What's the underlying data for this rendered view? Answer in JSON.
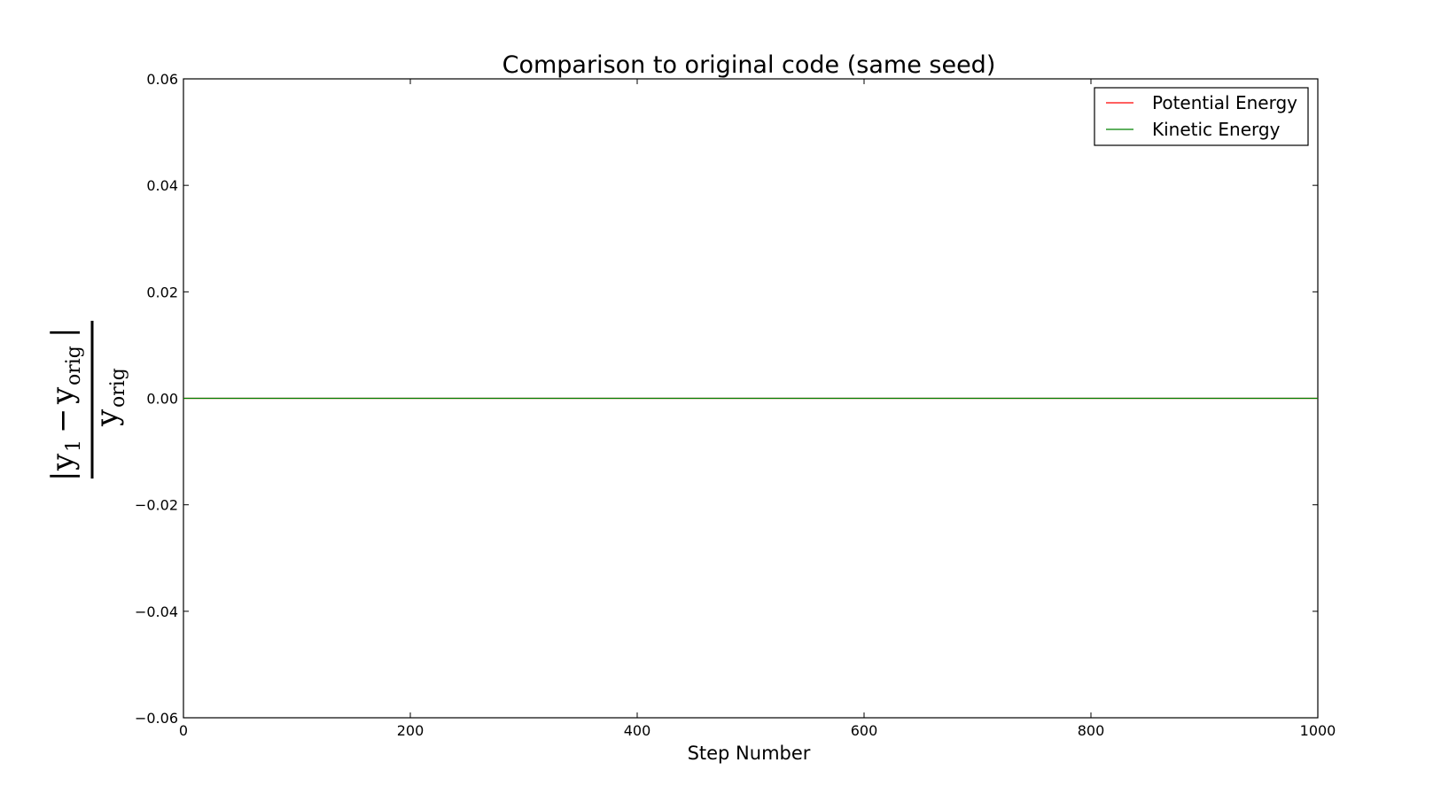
{
  "chart_data": {
    "type": "line",
    "title": "Comparison to original code (same seed)",
    "xlabel": "Step Number",
    "ylabel": {
      "numerator_var": "y",
      "numerator_sub": "1",
      "minus": "−",
      "numerator_ref_var": "y",
      "numerator_ref_sub": "orig",
      "abs_bar": "|",
      "denominator_var": "y",
      "denominator_sub": "orig"
    },
    "xlim": [
      0,
      1000
    ],
    "ylim": [
      -0.06,
      0.06
    ],
    "x_ticks": [
      0,
      200,
      400,
      600,
      800,
      1000
    ],
    "x_tick_labels": [
      "0",
      "200",
      "400",
      "600",
      "800",
      "1000"
    ],
    "y_ticks": [
      -0.06,
      -0.04,
      -0.02,
      0.0,
      0.02,
      0.04,
      0.06
    ],
    "y_tick_labels": [
      "−0.06",
      "−0.04",
      "−0.02",
      "0.00",
      "0.02",
      "0.04",
      "0.06"
    ],
    "grid": false,
    "legend_position": "top-right",
    "series": [
      {
        "name": "Potential Energy",
        "color": "#ff0000",
        "x": [
          0,
          1000
        ],
        "y": [
          0.0,
          0.0
        ]
      },
      {
        "name": "Kinetic Energy",
        "color": "#008000",
        "x": [
          0,
          1000
        ],
        "y": [
          0.0,
          0.0
        ]
      }
    ]
  }
}
